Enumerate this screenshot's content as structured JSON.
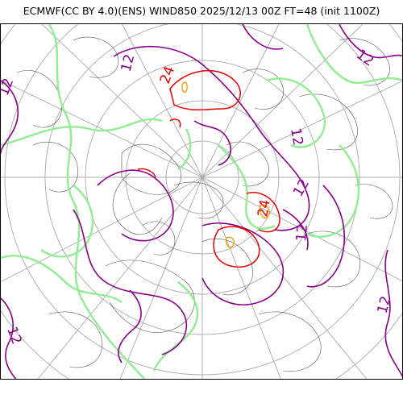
{
  "header": {
    "title": "ECMWF(CC BY 4.0)(ENS) WIND850 2025/12/13 00Z FT=48 (init 1100Z)"
  },
  "map": {
    "projection": "polar-stereographic-north",
    "colors": {
      "coast": "#555555",
      "grid": "#aaaaaa",
      "contour_12": "#8b008b",
      "contour_24": "#e60000",
      "contour_36": "#ff9900",
      "ensemble_spread": "#90ee90"
    },
    "contour_labels": [
      {
        "text": "12",
        "color": "#8b008b"
      },
      {
        "text": "12",
        "color": "#8b008b"
      },
      {
        "text": "12",
        "color": "#8b008b"
      },
      {
        "text": "12",
        "color": "#8b008b"
      },
      {
        "text": "12",
        "color": "#8b008b"
      },
      {
        "text": "12",
        "color": "#8b008b"
      },
      {
        "text": "12",
        "color": "#8b008b"
      },
      {
        "text": "12",
        "color": "#8b008b"
      },
      {
        "text": "24",
        "color": "#e60000"
      },
      {
        "text": "24",
        "color": "#e60000"
      }
    ]
  }
}
